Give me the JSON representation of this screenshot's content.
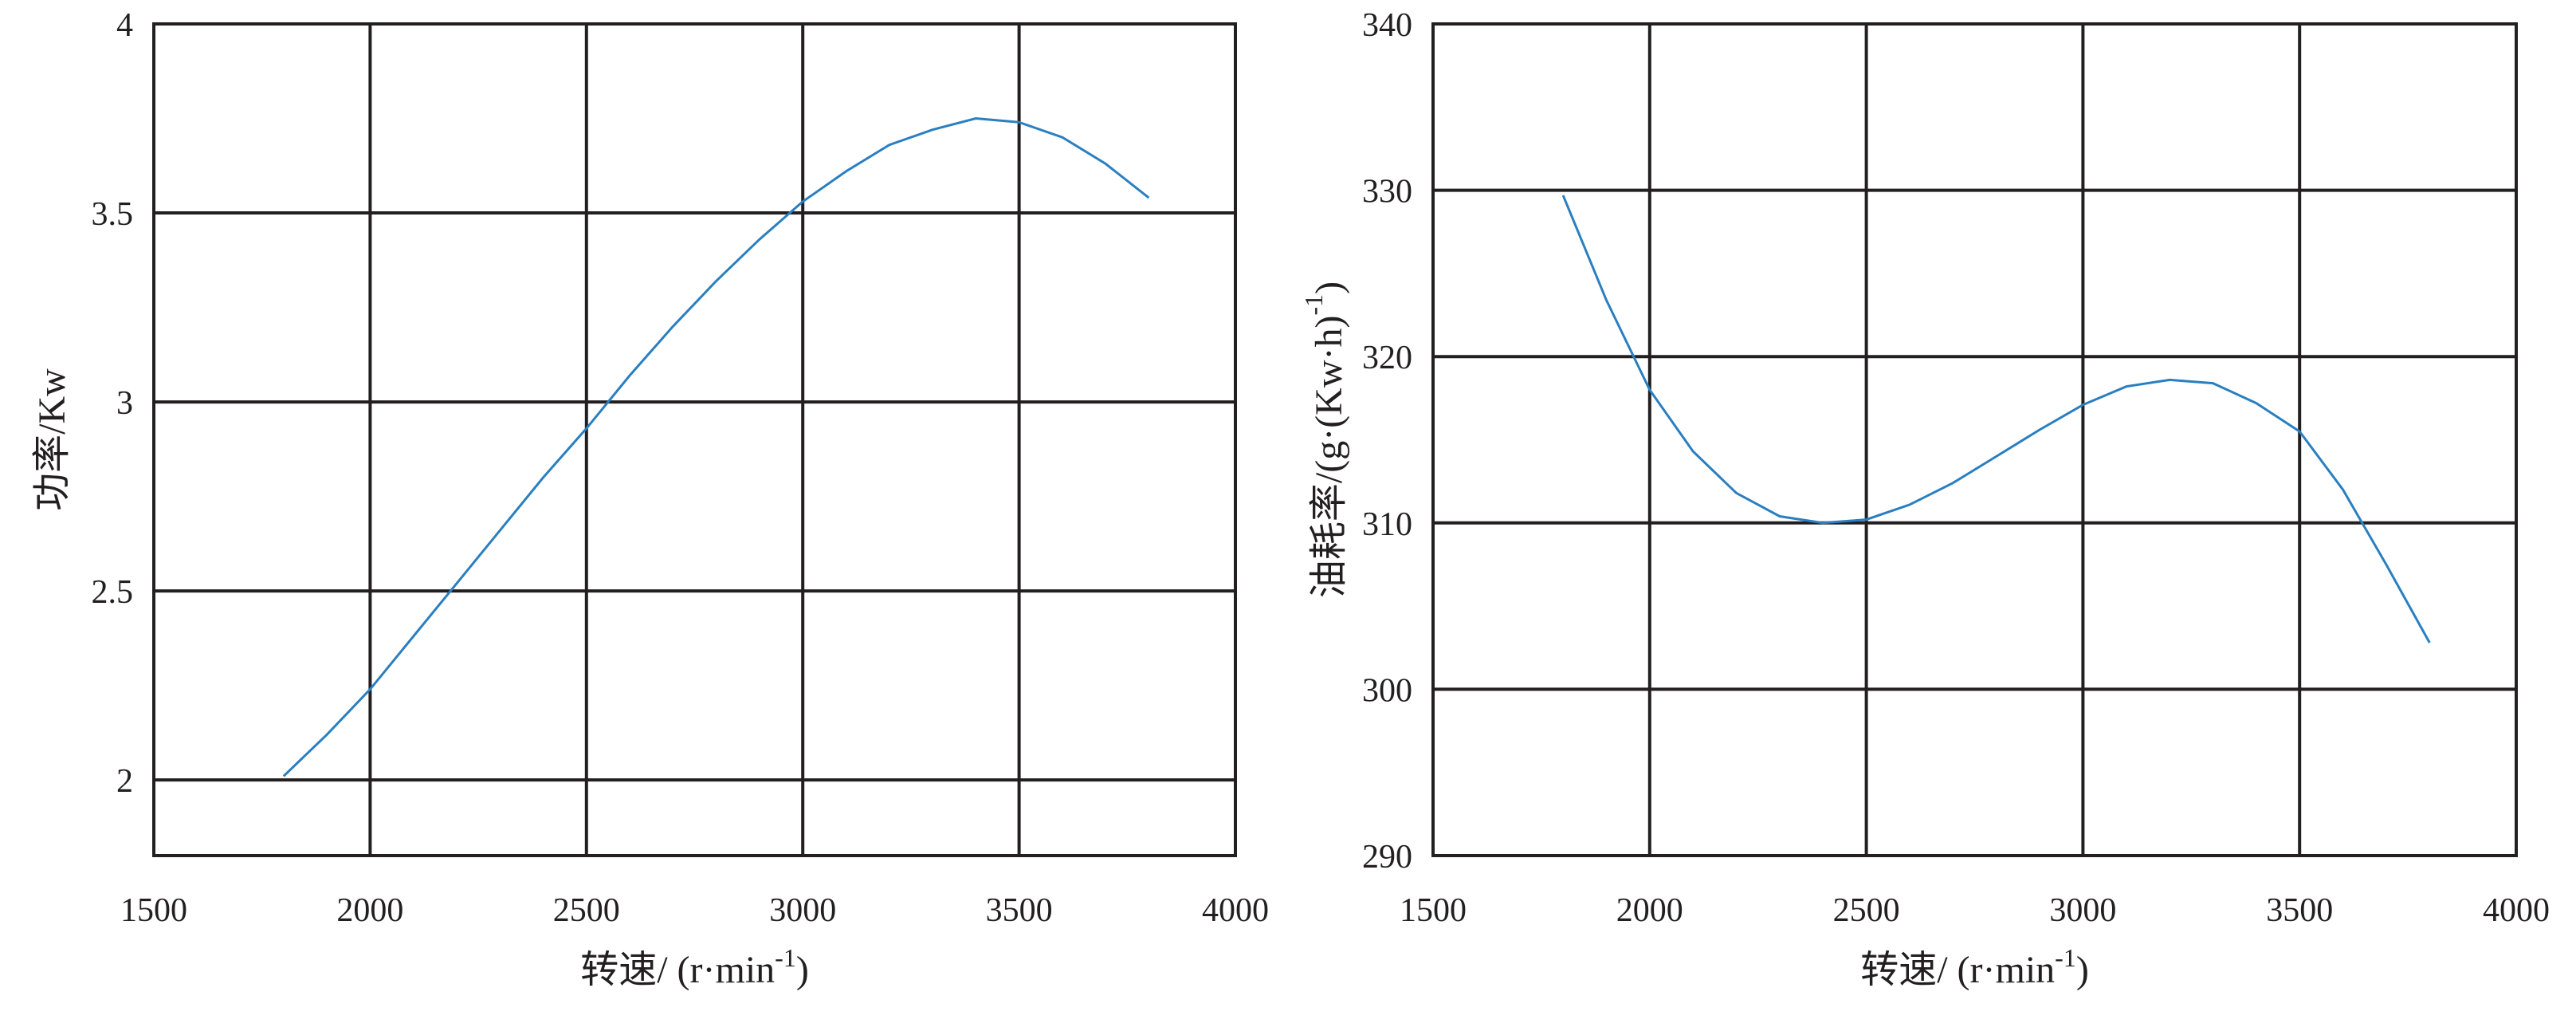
{
  "chart_data": [
    {
      "type": "line",
      "title": "",
      "xlabel": "转速/ (r·min",
      "xlabel_sup": "-1",
      "xlabel_end": ")",
      "ylabel": "功率/Kw",
      "xlim": [
        1500,
        4000
      ],
      "ylim": [
        1.8,
        4
      ],
      "grid": true,
      "xticks": [
        1500,
        2000,
        2500,
        3000,
        3500,
        4000
      ],
      "yticks": [
        2,
        2.5,
        3,
        3.5,
        4
      ],
      "xtick_labels": [
        "1500",
        "2000",
        "2500",
        "3000",
        "3500",
        "4000"
      ],
      "ytick_labels": [
        "2",
        "2.5",
        "3",
        "3.5",
        "4"
      ],
      "color": "#2a7fc0",
      "series": [
        {
          "x": [
            1800,
            1900,
            2000,
            2100,
            2200,
            2300,
            2400,
            2500,
            2600,
            2700,
            2800,
            2900,
            3000,
            3100,
            3200,
            3300,
            3400,
            3500,
            3600,
            3700,
            3800
          ],
          "values": [
            2.01,
            2.12,
            2.24,
            2.38,
            2.52,
            2.66,
            2.8,
            2.93,
            3.07,
            3.2,
            3.32,
            3.43,
            3.53,
            3.61,
            3.68,
            3.72,
            3.75,
            3.74,
            3.7,
            3.63,
            3.54
          ]
        }
      ]
    },
    {
      "type": "line",
      "title": "",
      "xlabel": "转速/ (r·min",
      "xlabel_sup": "-1",
      "xlabel_end": ")",
      "ylabel": "油耗率/(g·(Kw·h)",
      "ylabel_sup": "-1",
      "ylabel_end": ")",
      "xlim": [
        1500,
        4000
      ],
      "ylim": [
        290,
        340
      ],
      "grid": true,
      "xticks": [
        1500,
        2000,
        2500,
        3000,
        3500,
        4000
      ],
      "yticks": [
        290,
        300,
        310,
        320,
        330,
        340
      ],
      "xtick_labels": [
        "1500",
        "2000",
        "2500",
        "3000",
        "3500",
        "4000"
      ],
      "ytick_labels": [
        "290",
        "300",
        "310",
        "320",
        "330",
        "340"
      ],
      "color": "#2a7fc0",
      "series": [
        {
          "x": [
            1800,
            1900,
            2000,
            2100,
            2200,
            2300,
            2400,
            2500,
            2600,
            2700,
            2800,
            2900,
            3000,
            3100,
            3200,
            3300,
            3400,
            3500,
            3600,
            3700,
            3800
          ],
          "values": [
            329.7,
            323.4,
            318.0,
            314.3,
            311.8,
            310.4,
            310.0,
            310.2,
            311.1,
            312.4,
            314.0,
            315.6,
            317.1,
            318.2,
            318.6,
            318.4,
            317.2,
            315.5,
            312.0,
            307.5,
            302.8
          ]
        }
      ]
    }
  ]
}
